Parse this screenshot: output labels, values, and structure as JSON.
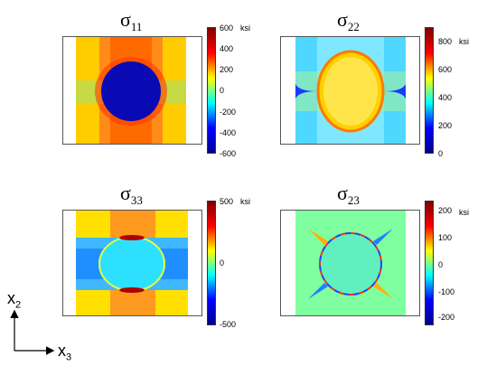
{
  "panels": [
    {
      "id": "s11",
      "title_base": "σ",
      "title_sub": "11",
      "unit": "ksi",
      "ticks": [
        "600",
        "400",
        "200",
        "0",
        "-200",
        "-400",
        "-600"
      ]
    },
    {
      "id": "s22",
      "title_base": "σ",
      "title_sub": "22",
      "unit": "ksi",
      "ticks": [
        "800",
        "600",
        "400",
        "200",
        "0"
      ]
    },
    {
      "id": "s33",
      "title_base": "σ",
      "title_sub": "33",
      "unit": "ksi",
      "ticks": [
        "500",
        "0",
        "-500"
      ]
    },
    {
      "id": "s23",
      "title_base": "σ",
      "title_sub": "23",
      "unit": "ksi",
      "ticks": [
        "200",
        "100",
        "0",
        "-100",
        "-200"
      ]
    }
  ],
  "axes": {
    "vertical": "x",
    "vertical_sub": "2",
    "horizontal": "x",
    "horizontal_sub": "3"
  },
  "colors": {
    "jet_dark_blue": "#00008f",
    "jet_blue": "#0000ff",
    "jet_cyan": "#00ffff",
    "jet_yellow": "#ffff00",
    "jet_red": "#ff0000",
    "jet_dark_red": "#800000"
  }
}
